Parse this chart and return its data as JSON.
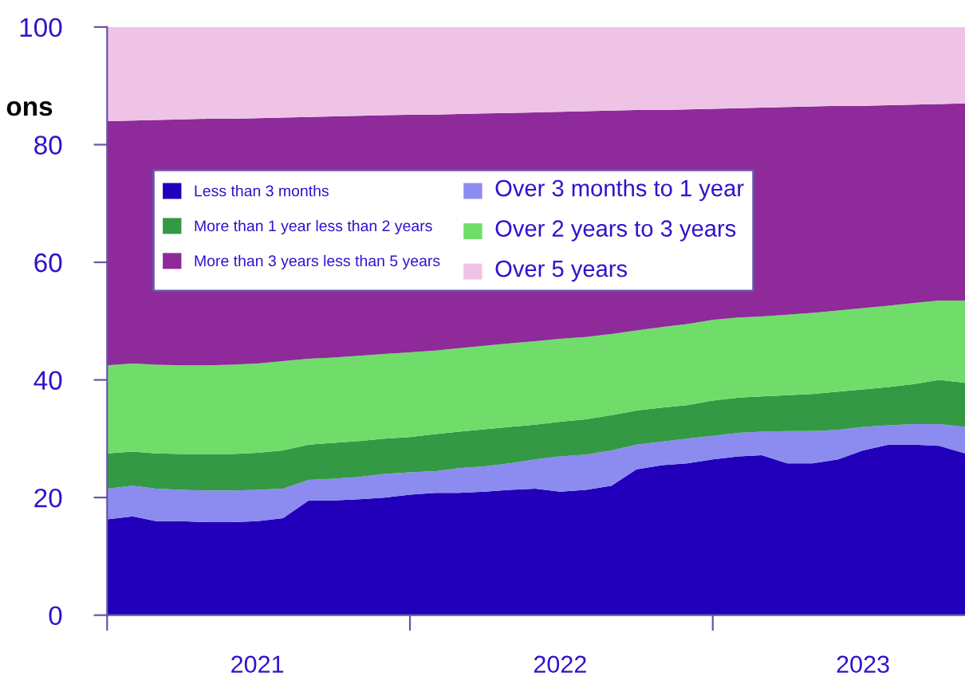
{
  "chart_data": {
    "type": "area",
    "stacked": true,
    "ylabel": "ons",
    "x": [
      "2021-01",
      "2021-02",
      "2021-03",
      "2021-04",
      "2021-05",
      "2021-06",
      "2021-07",
      "2021-08",
      "2021-09",
      "2021-10",
      "2021-11",
      "2021-12",
      "2022-01",
      "2022-02",
      "2022-03",
      "2022-04",
      "2022-05",
      "2022-06",
      "2022-07",
      "2022-08",
      "2022-09",
      "2022-10",
      "2022-11",
      "2022-12",
      "2023-01",
      "2023-02",
      "2023-03",
      "2023-04",
      "2023-05",
      "2023-06",
      "2023-07",
      "2023-08",
      "2023-09",
      "2023-10",
      "2023-11"
    ],
    "series": [
      {
        "name": "Less than 3 months",
        "color": "#2200bb",
        "values": [
          16.3,
          16.8,
          16.0,
          16.0,
          15.8,
          15.8,
          16.0,
          16.5,
          19.5,
          19.5,
          19.7,
          20.0,
          20.5,
          20.8,
          20.8,
          21.0,
          21.3,
          21.5,
          21.0,
          21.3,
          22.0,
          24.8,
          25.5,
          25.8,
          26.5,
          27.0,
          27.2,
          25.8,
          25.8,
          26.5,
          28.0,
          29.0,
          29.0,
          28.8,
          27.5
        ]
      },
      {
        "name": "Over 3 months to 1 year",
        "color": "#8c8cf0",
        "values": [
          5.2,
          5.2,
          5.5,
          5.3,
          5.4,
          5.4,
          5.3,
          5.0,
          3.5,
          3.7,
          3.8,
          4.0,
          3.8,
          3.7,
          4.2,
          4.3,
          4.5,
          5.0,
          6.0,
          6.0,
          6.0,
          4.2,
          4.0,
          4.2,
          4.0,
          4.0,
          4.0,
          5.5,
          5.5,
          5.0,
          4.0,
          3.3,
          3.5,
          3.7,
          4.5
        ]
      },
      {
        "name": "More than 1 year less than 2 years",
        "color": "#339944",
        "values": [
          6.0,
          5.8,
          6.0,
          6.1,
          6.2,
          6.2,
          6.3,
          6.5,
          6.0,
          6.1,
          6.1,
          6.0,
          6.0,
          6.3,
          6.2,
          6.3,
          6.2,
          5.9,
          5.9,
          6.0,
          6.0,
          5.8,
          5.8,
          5.7,
          6.0,
          6.0,
          6.0,
          6.1,
          6.3,
          6.5,
          6.4,
          6.5,
          6.8,
          7.5,
          7.5
        ]
      },
      {
        "name": "Over 2 years to 3 years",
        "color": "#70dd6a",
        "values": [
          15.0,
          15.0,
          15.1,
          15.1,
          15.1,
          15.2,
          15.2,
          15.2,
          14.6,
          14.5,
          14.5,
          14.4,
          14.4,
          14.2,
          14.2,
          14.2,
          14.2,
          14.2,
          14.1,
          14.0,
          13.8,
          13.6,
          13.7,
          13.8,
          13.7,
          13.6,
          13.6,
          13.7,
          13.8,
          13.8,
          13.8,
          13.8,
          13.8,
          13.5,
          14.0
        ]
      },
      {
        "name": "More than 3 years less than 5 years",
        "color": "#8e2a9a",
        "values": [
          41.5,
          41.3,
          41.6,
          41.8,
          41.9,
          41.8,
          41.7,
          41.4,
          41.1,
          41.0,
          40.8,
          40.6,
          40.4,
          40.1,
          39.8,
          39.5,
          39.2,
          38.9,
          38.6,
          38.4,
          38.0,
          37.5,
          36.9,
          36.5,
          35.9,
          35.6,
          35.5,
          35.3,
          35.1,
          34.8,
          34.4,
          34.1,
          33.7,
          33.4,
          33.5
        ]
      },
      {
        "name": "Over 5 years",
        "color": "#efc3e6",
        "values": [
          16.0,
          15.9,
          15.8,
          15.7,
          15.6,
          15.6,
          15.5,
          15.4,
          15.3,
          15.2,
          15.1,
          15.0,
          14.9,
          14.9,
          14.8,
          14.7,
          14.6,
          14.5,
          14.4,
          14.3,
          14.2,
          14.1,
          14.1,
          14.0,
          13.9,
          13.8,
          13.7,
          13.6,
          13.5,
          13.4,
          13.4,
          13.3,
          13.2,
          13.1,
          13.0
        ]
      }
    ],
    "xlim": [
      "2021-01",
      "2023-11"
    ],
    "xticks": [
      {
        "value": "2021-01",
        "label": null
      },
      {
        "value": "2021-07",
        "label": "2021"
      },
      {
        "value": "2022-01",
        "label": null
      },
      {
        "value": "2022-07",
        "label": "2022"
      },
      {
        "value": "2023-01",
        "label": null
      },
      {
        "value": "2023-07",
        "label": "2023"
      }
    ],
    "ylim": [
      0,
      100
    ],
    "yticks": [
      0,
      20,
      40,
      60,
      80,
      100
    ],
    "legend": "top left",
    "grid": false
  }
}
